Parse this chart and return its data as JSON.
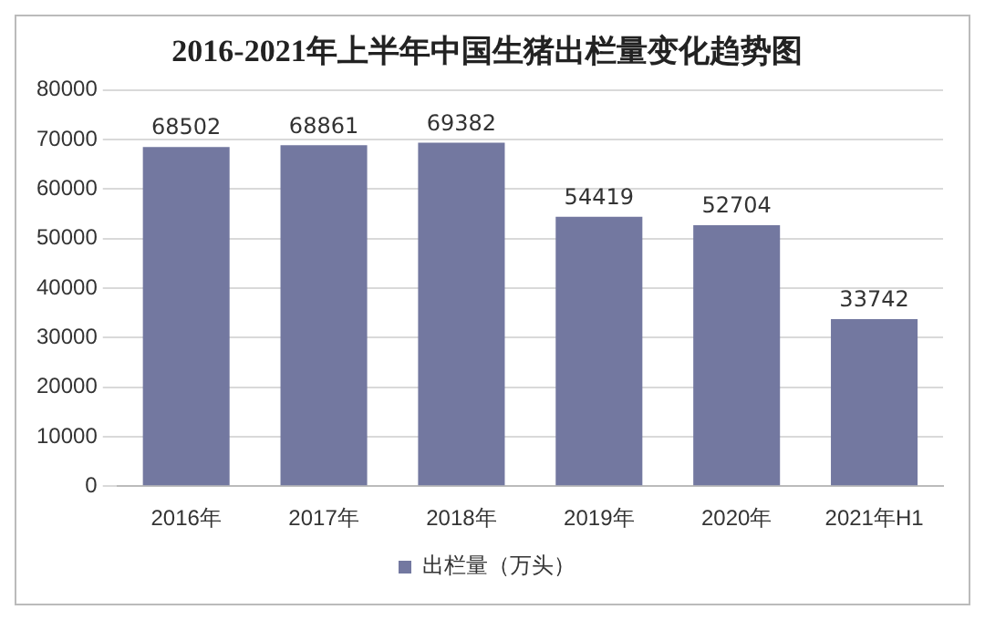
{
  "chart_data": {
    "type": "bar",
    "title": "2016-2021年上半年中国生猪出栏量变化趋势图",
    "categories": [
      "2016年",
      "2017年",
      "2018年",
      "2019年",
      "2020年",
      "2021年H1"
    ],
    "series": [
      {
        "name": "出栏量（万头）",
        "color": "#7378a0",
        "values": [
          68502,
          68861,
          69382,
          54419,
          52704,
          33742
        ]
      }
    ],
    "ylim": [
      0,
      80000
    ],
    "yticks": [
      0,
      10000,
      20000,
      30000,
      40000,
      50000,
      60000,
      70000,
      80000
    ],
    "grid": "y",
    "legend": "bottom",
    "data_labels": true
  }
}
